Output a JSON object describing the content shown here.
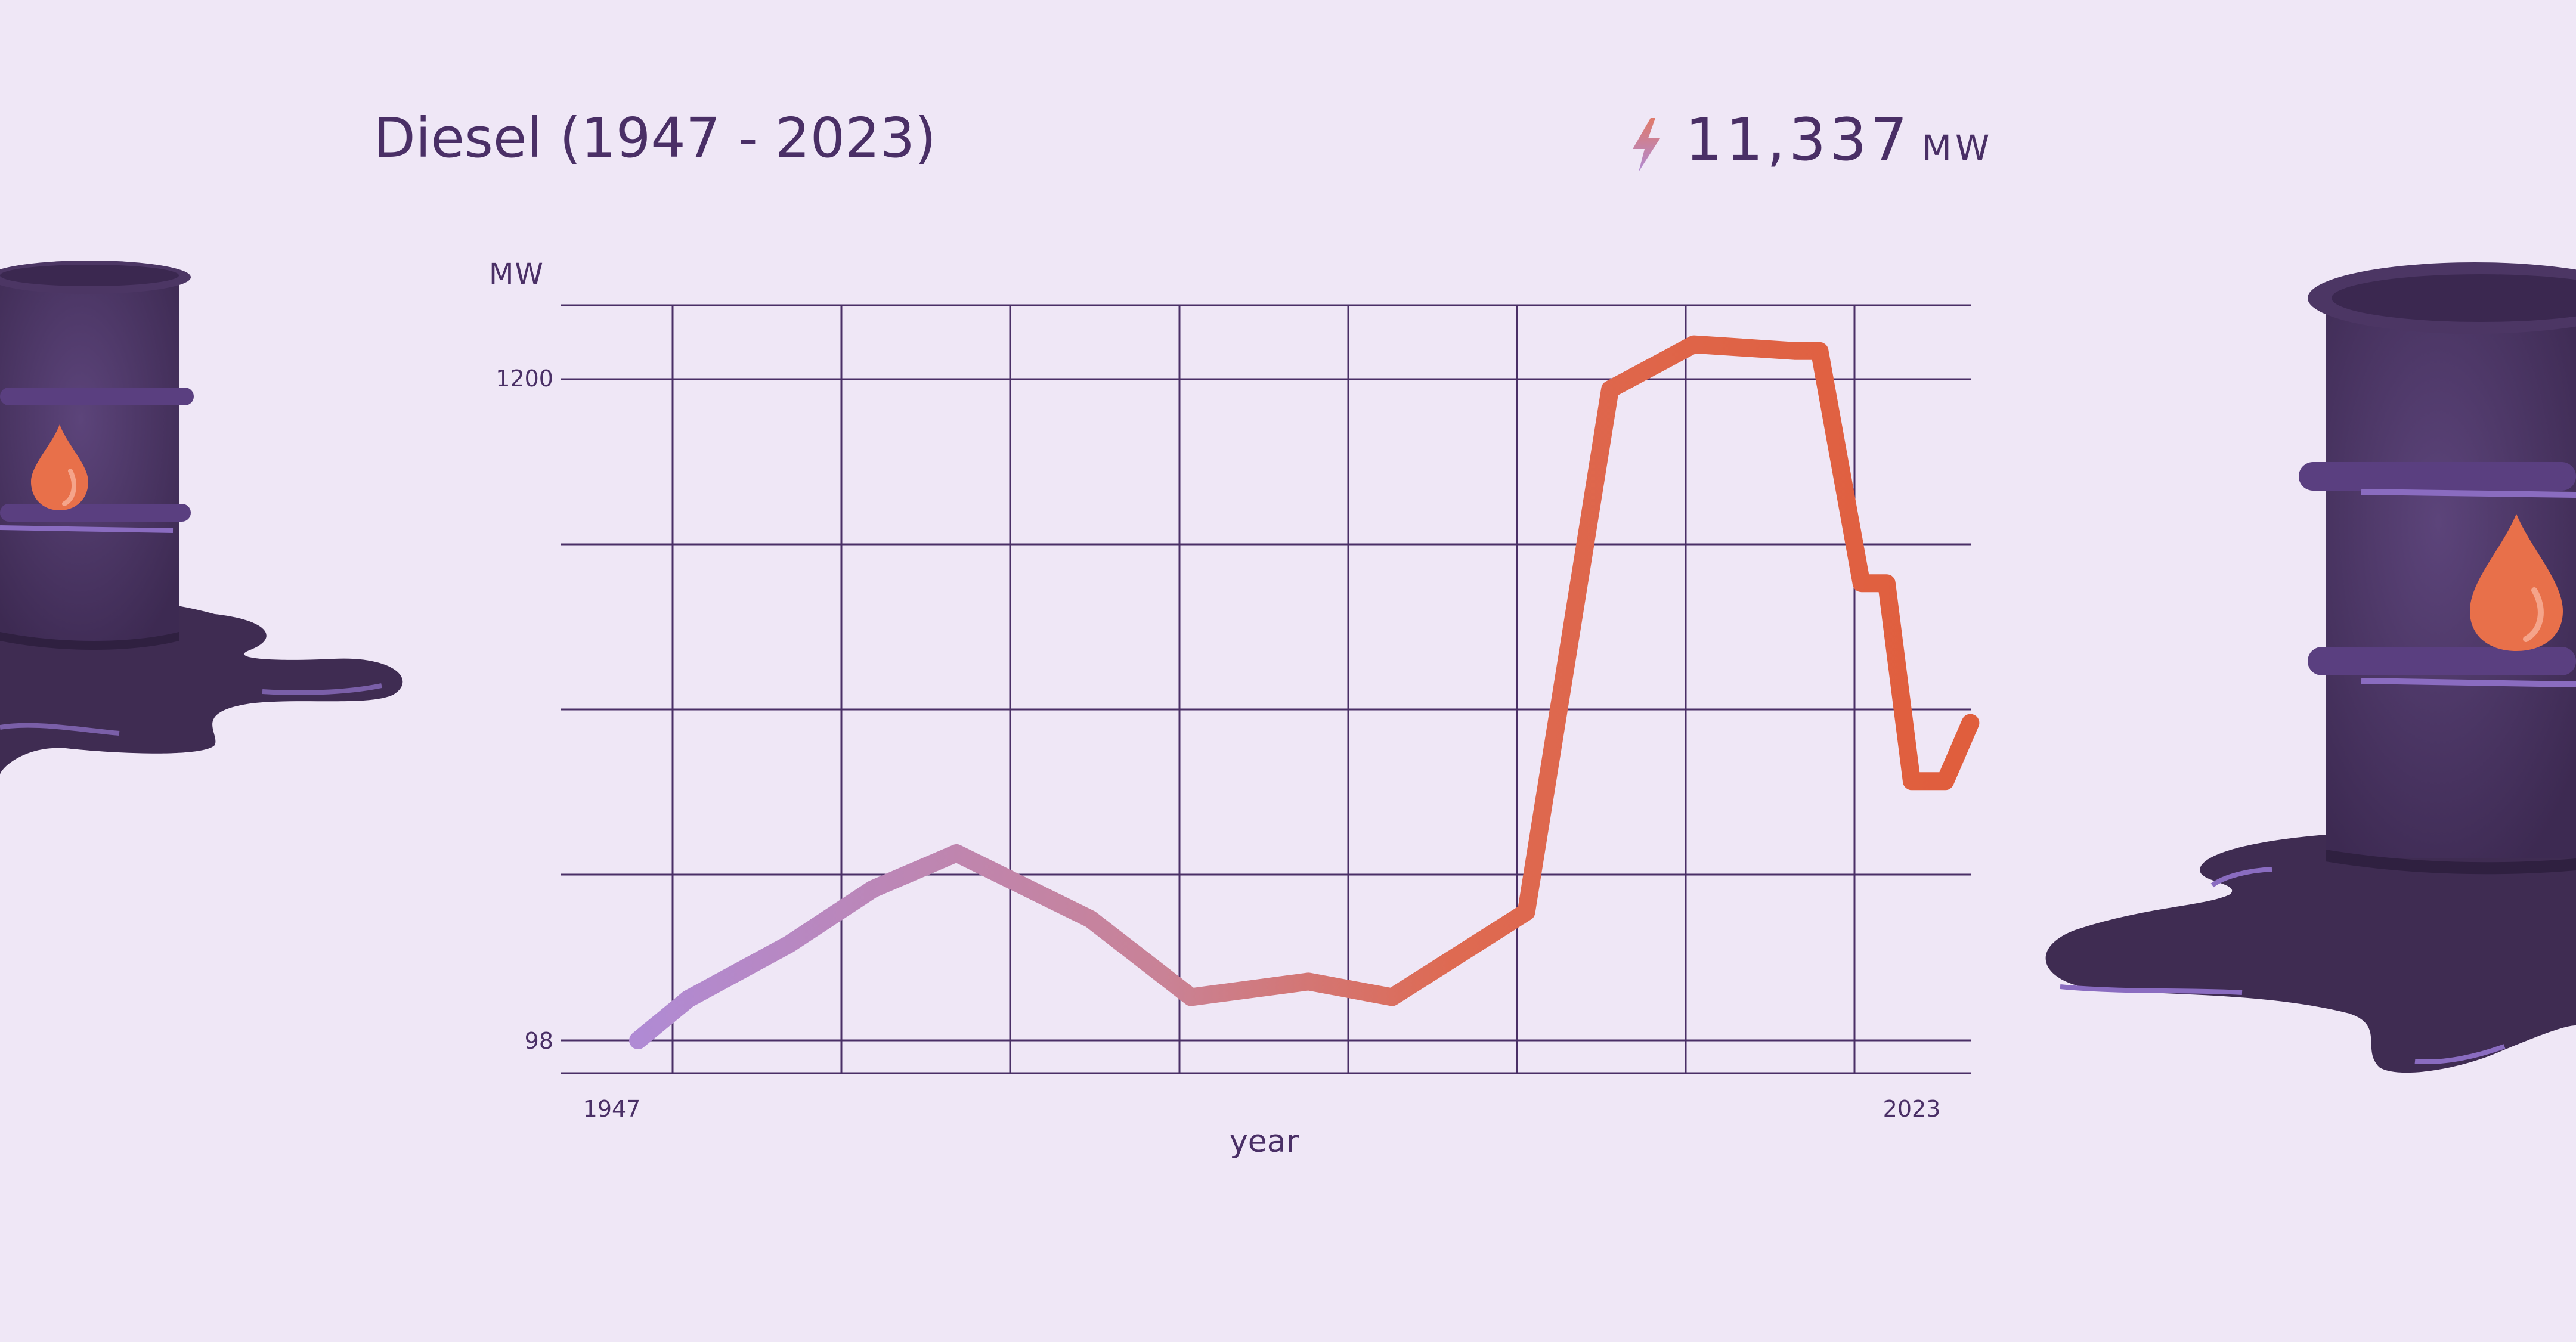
{
  "title": "Diesel (1947 - 2023)",
  "capacity": {
    "value": "11,337",
    "unit": "MW",
    "icon": "lightning-bolt-icon"
  },
  "illustrations": [
    "oil-barrel-spill-icon",
    "oil-barrel-spill-icon"
  ],
  "colors": {
    "background": "#efe7f6",
    "text": "#4a2f66",
    "grid": "#4a2f66",
    "line_start": "#b08ad4",
    "line_mid": "#c98296",
    "line_end": "#e05e3d",
    "barrel": "#453058",
    "drop": "#e8704a"
  },
  "chart_data": {
    "type": "line",
    "title": "",
    "xlabel": "year",
    "ylabel": "MW",
    "ytick_labels": [
      "98",
      "1200"
    ],
    "xtick_labels": [
      "1947",
      "2023"
    ],
    "xlim": [
      1947,
      2023
    ],
    "ylim": [
      98,
      1200
    ],
    "grid": true,
    "series": [
      {
        "values": [
          {
            "x": 1947,
            "y": 98
          },
          {
            "x": 1950,
            "y": 167
          },
          {
            "x": 1956,
            "y": 258
          },
          {
            "x": 1961,
            "y": 350
          },
          {
            "x": 1966,
            "y": 410
          },
          {
            "x": 1974,
            "y": 300
          },
          {
            "x": 1980,
            "y": 170
          },
          {
            "x": 1987,
            "y": 196
          },
          {
            "x": 1992,
            "y": 170
          },
          {
            "x": 2000,
            "y": 312
          },
          {
            "x": 2005,
            "y": 1183
          },
          {
            "x": 2010,
            "y": 1258
          },
          {
            "x": 2016,
            "y": 1247
          },
          {
            "x": 2017.5,
            "y": 1247
          },
          {
            "x": 2020,
            "y": 860
          },
          {
            "x": 2021.5,
            "y": 860
          },
          {
            "x": 2023,
            "y": 530
          },
          {
            "x": 2025,
            "y": 530
          },
          {
            "x": 2026.5,
            "y": 627
          }
        ]
      }
    ]
  }
}
